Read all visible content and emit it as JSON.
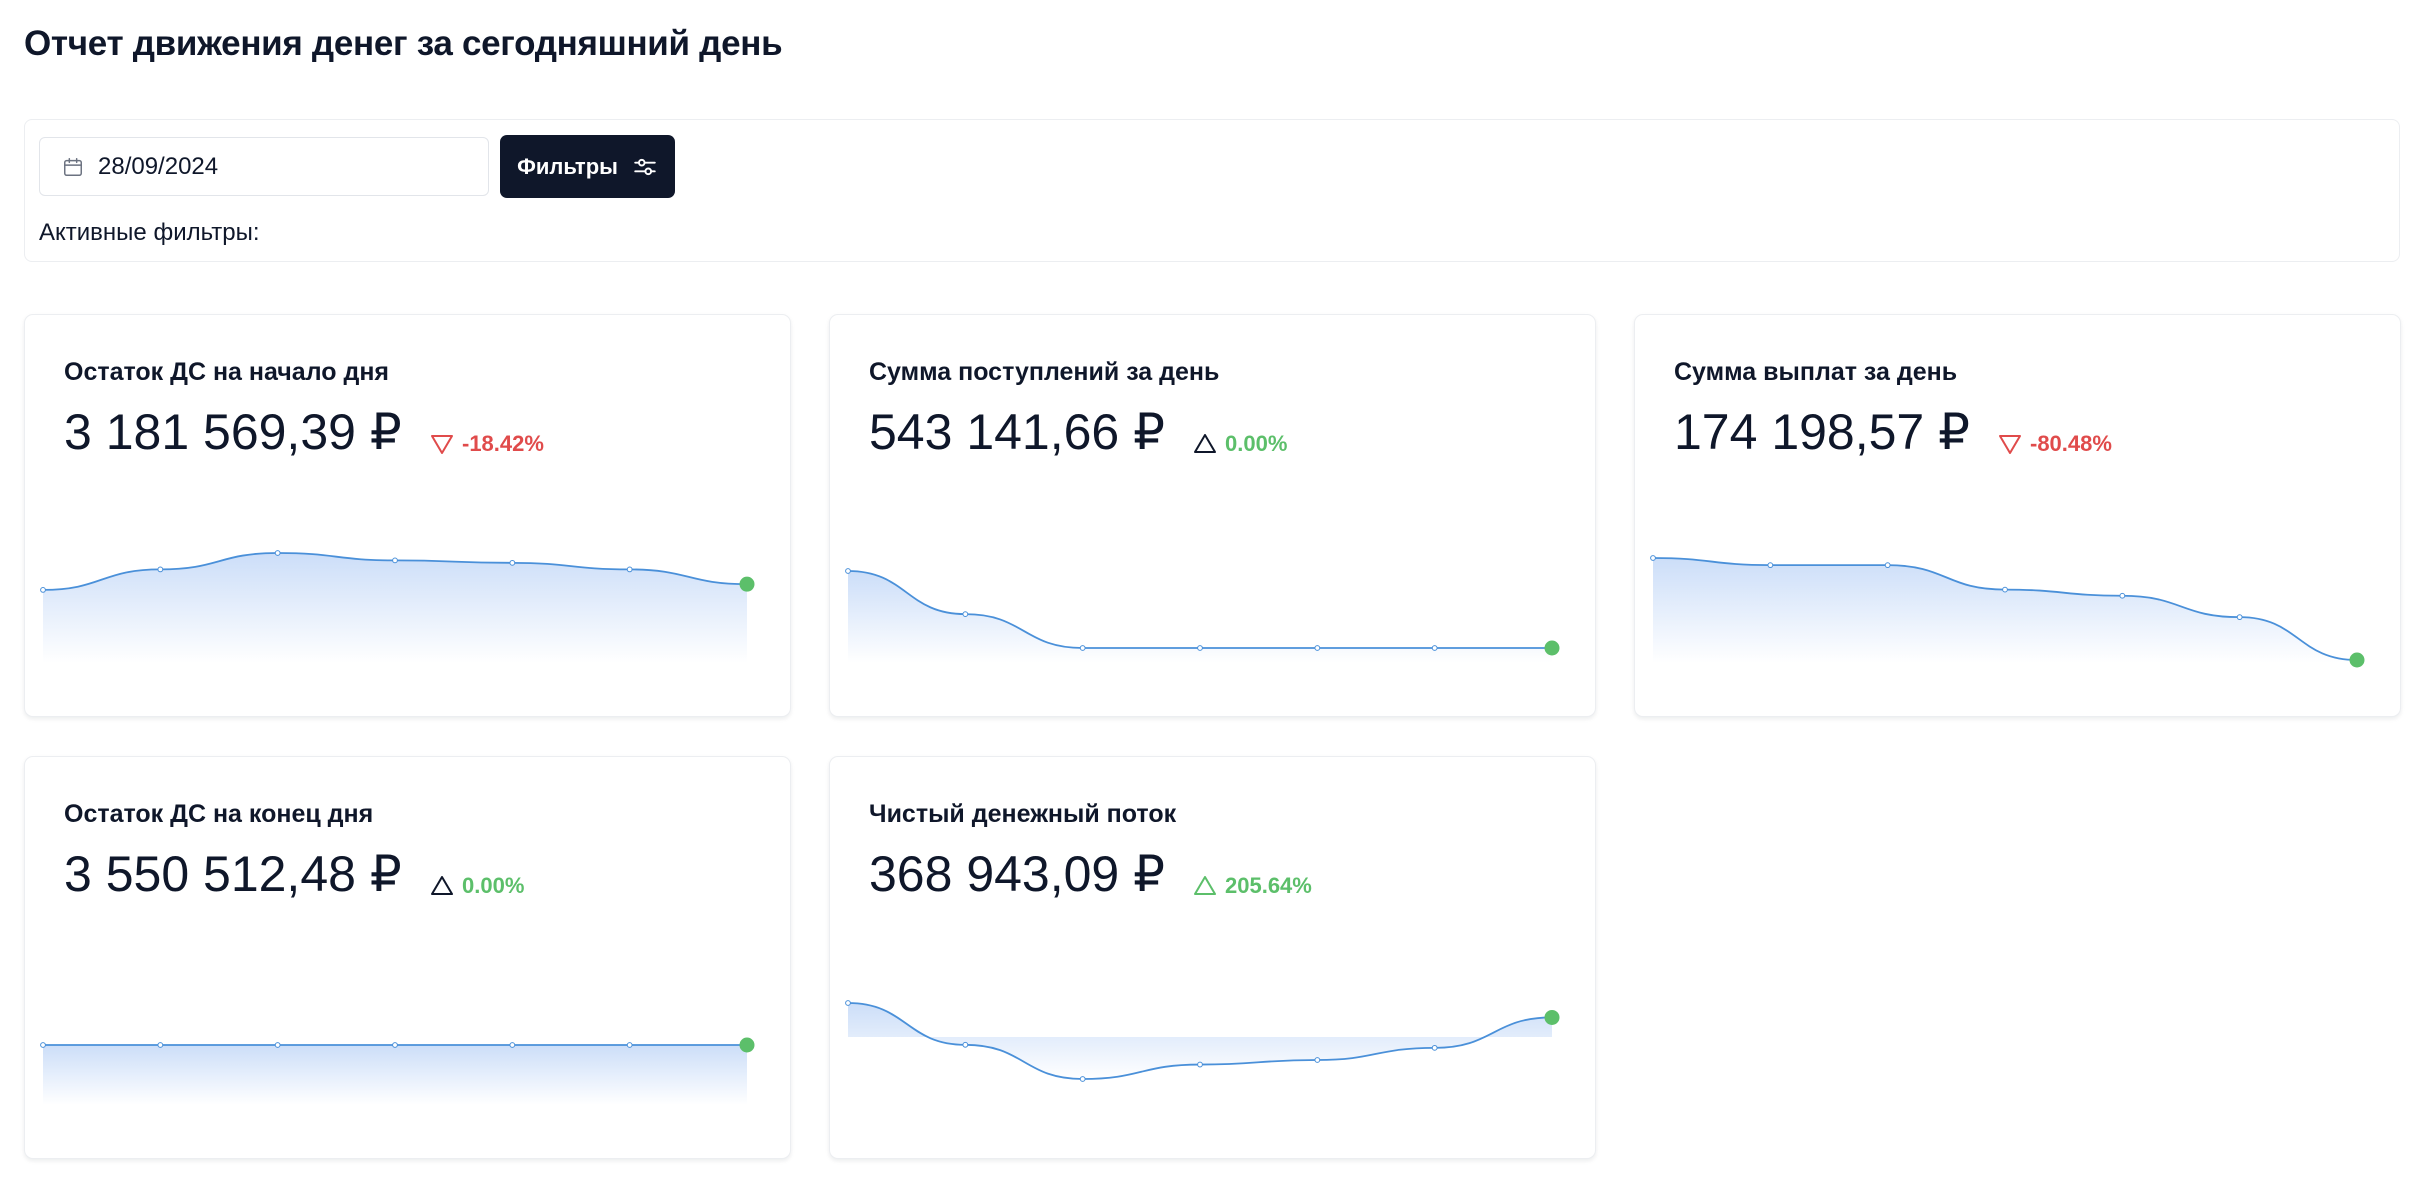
{
  "page": {
    "title": "Отчет движения денег за сегодняшний день"
  },
  "filters": {
    "date_value": "28/09/2024",
    "date_icon": "calendar-icon",
    "button_label": "Фильтры",
    "button_icon": "sliders-icon",
    "active_label": "Активные фильтры:"
  },
  "colors": {
    "accent_dark": "#0f172a",
    "line_blue": "#4a90d9",
    "fill_blue": "#c9dcf8",
    "positive_green": "#5cbf6a",
    "negative_red": "#e04b4b",
    "neutral": "#0f172a"
  },
  "cards": [
    {
      "title": "Остаток ДС на начало дня",
      "value": "3 181 569,39 ₽",
      "delta": "-18.42%",
      "trend": "down",
      "sparkline": [
        0.55,
        0.8,
        1.0,
        0.91,
        0.88,
        0.8,
        0.62
      ]
    },
    {
      "title": "Сумма поступлений за день",
      "value": "543 141,66 ₽",
      "delta": "0.00%",
      "trend": "flat",
      "sparkline": [
        1.0,
        0.44,
        0.0,
        0.0,
        0.0,
        0.0,
        0.0
      ]
    },
    {
      "title": "Сумма выплат за день",
      "value": "174 198,57 ₽",
      "delta": "-80.48%",
      "trend": "down",
      "sparkline": [
        1.0,
        0.93,
        0.93,
        0.69,
        0.63,
        0.42,
        0.0
      ]
    },
    {
      "title": "Остаток ДС на конец дня",
      "value": "3 550 512,48 ₽",
      "delta": "0.00%",
      "trend": "flat",
      "sparkline": [
        0.5,
        0.5,
        0.5,
        0.5,
        0.5,
        0.5,
        0.5
      ]
    },
    {
      "title": "Чистый денежный поток",
      "value": "368 943,09 ₽",
      "delta": "205.64%",
      "trend": "up",
      "sparkline": [
        1.0,
        0.45,
        0.0,
        0.19,
        0.25,
        0.41,
        0.81
      ]
    }
  ]
}
